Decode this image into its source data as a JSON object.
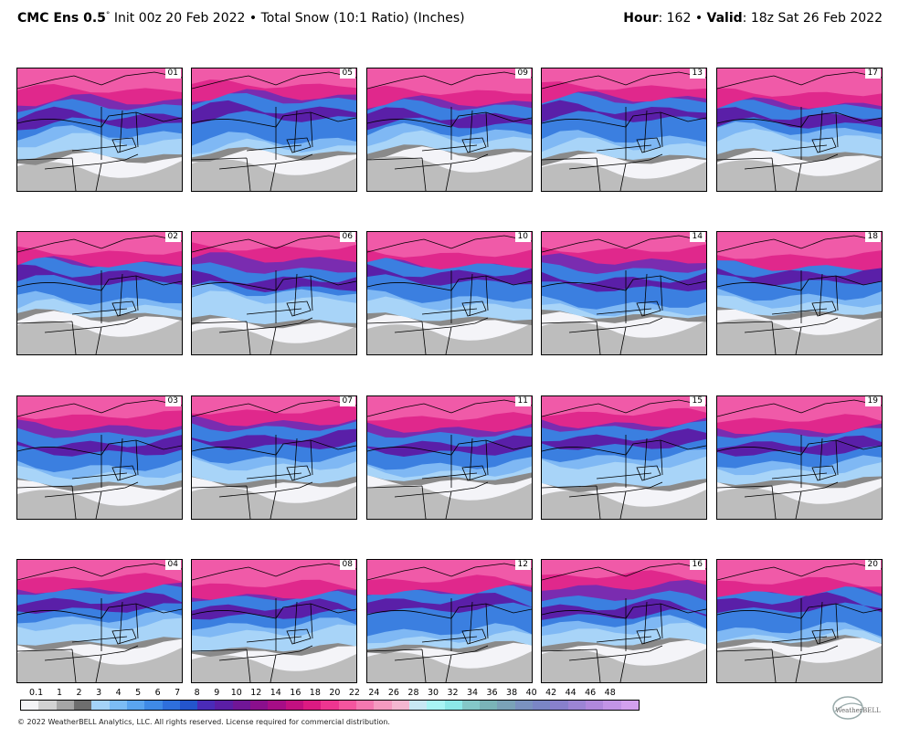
{
  "header": {
    "model": "CMC Ens 0.5",
    "degree": "°",
    "rest": " Init 00z 20 Feb 2022 • Total Snow (10:1 Ratio) (Inches)",
    "hour_label": "Hour",
    "hour_value": ": 162 • ",
    "valid_label": "Valid",
    "valid_value": ": 18z Sat 26 Feb 2022"
  },
  "members": [
    [
      "01",
      "05",
      "09",
      "13",
      "17"
    ],
    [
      "02",
      "06",
      "10",
      "14",
      "18"
    ],
    [
      "03",
      "07",
      "11",
      "15",
      "19"
    ],
    [
      "04",
      "08",
      "12",
      "16",
      "20"
    ]
  ],
  "colorbar": {
    "labels": [
      "0.1",
      "1",
      "2",
      "3",
      "4",
      "5",
      "6",
      "7",
      "8",
      "9",
      "10",
      "12",
      "14",
      "16",
      "18",
      "20",
      "22",
      "24",
      "26",
      "28",
      "30",
      "32",
      "34",
      "36",
      "38",
      "40",
      "42",
      "44",
      "46",
      "48"
    ],
    "colors": [
      "#f4f4f6",
      "#d2d2d2",
      "#a6a6a6",
      "#6e6e6e",
      "#a4d3f8",
      "#7cbcf5",
      "#5aa4ef",
      "#3f8ae6",
      "#2e6fdc",
      "#2455cc",
      "#4a2bb8",
      "#5b1ea6",
      "#701696",
      "#8a0f8c",
      "#a60d86",
      "#c21080",
      "#dc1a82",
      "#ee3590",
      "#f4559e",
      "#f478b0",
      "#f59ac0",
      "#f4b6d0",
      "#c8e8f4",
      "#a8f4f4",
      "#8ce8e8",
      "#84c8c8",
      "#7ab4b8",
      "#7aa2b8",
      "#7a92c0",
      "#7a86c6",
      "#8880cc",
      "#9c84d4",
      "#b088dc",
      "#c294e6",
      "#d2a0ee"
    ]
  },
  "footer": "© 2022 WeatherBELL Analytics, LLC. All rights reserved. License required for commercial distribution.",
  "logo_text": "WeatherBELL"
}
